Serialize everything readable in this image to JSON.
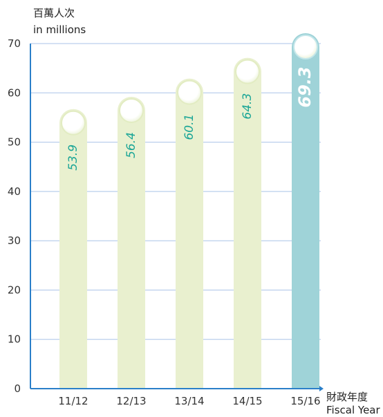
{
  "chart_data": {
    "type": "bar",
    "ylabel_zh": "百萬人次",
    "ylabel_en": "in millions",
    "xlabel_zh": "財政年度",
    "xlabel_en": "Fiscal Year",
    "categories": [
      "11/12",
      "12/13",
      "13/14",
      "14/15",
      "15/16"
    ],
    "values": [
      53.9,
      56.4,
      60.1,
      64.3,
      69.3
    ],
    "value_labels": [
      "53.9",
      "56.4",
      "60.1",
      "64.3",
      "69.3"
    ],
    "ylim": [
      0,
      70
    ],
    "yticks": [
      "0",
      "10",
      "20",
      "30",
      "40",
      "50",
      "60",
      "70"
    ],
    "grid": true,
    "colors": {
      "bar": "#e9f0cf",
      "bar_highlight": "#9fd3d8",
      "grid": "#a9c3e8",
      "axis": "#2a7fc9",
      "label": "#1aa596"
    }
  }
}
